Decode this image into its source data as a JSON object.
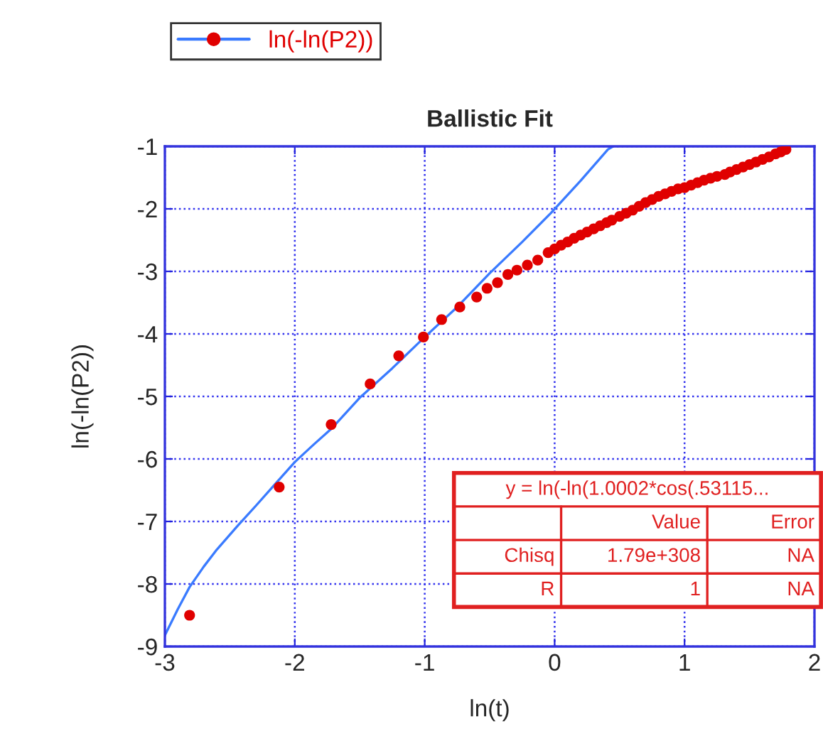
{
  "chart_data": {
    "type": "scatter",
    "title": "Ballistic Fit",
    "xlabel": "ln(t)",
    "ylabel": "ln(-ln(P2))",
    "xlim": [
      -3,
      2
    ],
    "ylim": [
      -9,
      -1
    ],
    "xticks": [
      -3,
      -2,
      -1,
      0,
      1,
      2
    ],
    "yticks": [
      -9,
      -8,
      -7,
      -6,
      -5,
      -4,
      -3,
      -2,
      -1
    ],
    "grid": true,
    "legend": "top left",
    "marker": "circle",
    "series": [
      {
        "name": "ln(-ln(P2))",
        "color": "#e00000",
        "x": [
          -2.81,
          -2.12,
          -1.72,
          -1.42,
          -1.2,
          -1.01,
          -0.87,
          -0.73,
          -0.6,
          -0.52,
          -0.44,
          -0.36,
          -0.29,
          -0.21,
          -0.13,
          -0.05,
          0.0,
          0.05,
          0.1,
          0.15,
          0.2,
          0.25,
          0.3,
          0.35,
          0.4,
          0.44,
          0.5,
          0.55,
          0.6,
          0.65,
          0.7,
          0.75,
          0.8,
          0.85,
          0.9,
          0.95,
          1.0,
          1.05,
          1.1,
          1.15,
          1.2,
          1.25,
          1.31,
          1.35,
          1.4,
          1.45,
          1.5,
          1.55,
          1.6,
          1.65,
          1.7,
          1.74,
          1.78
        ],
        "values": [
          -8.5,
          -6.45,
          -5.45,
          -4.8,
          -4.35,
          -4.05,
          -3.77,
          -3.57,
          -3.41,
          -3.27,
          -3.18,
          -3.05,
          -2.98,
          -2.9,
          -2.82,
          -2.7,
          -2.64,
          -2.58,
          -2.53,
          -2.47,
          -2.42,
          -2.37,
          -2.32,
          -2.27,
          -2.22,
          -2.18,
          -2.12,
          -2.07,
          -2.02,
          -1.96,
          -1.9,
          -1.85,
          -1.8,
          -1.76,
          -1.72,
          -1.68,
          -1.66,
          -1.62,
          -1.58,
          -1.54,
          -1.51,
          -1.48,
          -1.45,
          -1.41,
          -1.37,
          -1.33,
          -1.29,
          -1.25,
          -1.21,
          -1.17,
          -1.12,
          -1.09,
          -1.05
        ]
      },
      {
        "color": "#3a7bff",
        "type": "line",
        "marker": "none",
        "x": [
          -3.0,
          -2.9,
          -2.81,
          -2.7,
          -2.6,
          -2.44,
          -2.3,
          -2.15,
          -2.0,
          -1.86,
          -1.72,
          -1.5,
          -1.25,
          -1.01,
          -0.75,
          -0.5,
          -0.25,
          -0.03,
          0.2,
          0.41,
          0.45
        ],
        "values": [
          -8.82,
          -8.4,
          -8.05,
          -7.72,
          -7.45,
          -7.07,
          -6.75,
          -6.4,
          -6.05,
          -5.78,
          -5.52,
          -5.02,
          -4.55,
          -4.07,
          -3.57,
          -3.03,
          -2.53,
          -2.07,
          -1.55,
          -1.05,
          -1.0
        ]
      }
    ],
    "annotations": [
      "y = ln(-ln(1.0002*cos(.53115...",
      "Value",
      "Error",
      "Chisq",
      "1.79e+308",
      "NA",
      "R",
      "1",
      "NA"
    ]
  }
}
